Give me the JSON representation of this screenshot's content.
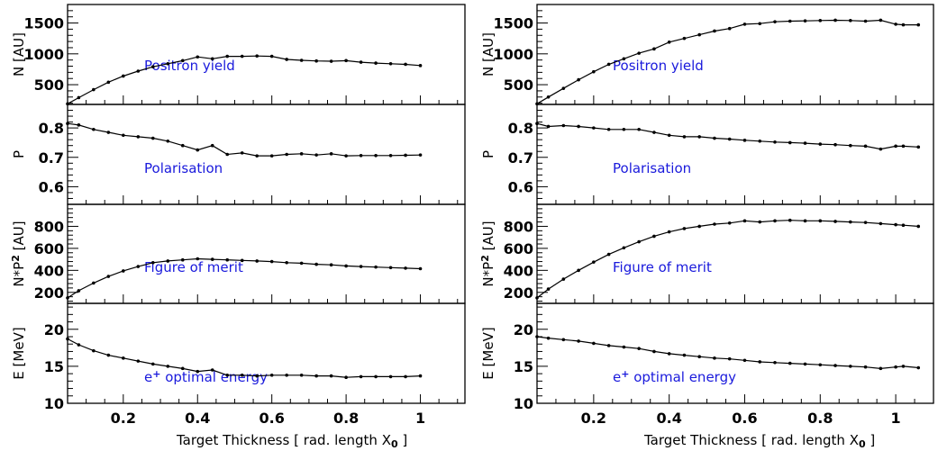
{
  "chart_data": [
    {
      "type": "line",
      "column": "left",
      "xlabel_parts": [
        "Target Thickness [ rad. length X",
        "0",
        " ]"
      ],
      "xlim": [
        0.05,
        1.12
      ],
      "xticks": [
        0.2,
        0.4,
        0.6,
        0.8,
        1
      ],
      "xtick_labels": [
        "0.2",
        "0.4",
        "0.6",
        "0.8",
        "1"
      ],
      "panels": [
        {
          "ylabel_parts": [
            "N [AU]"
          ],
          "annotation_parts": [
            "Positron yield"
          ],
          "ylim": [
            180,
            1800
          ],
          "yticks": [
            500,
            1000,
            1500
          ],
          "ytick_labels": [
            "500",
            "1000",
            "1500"
          ],
          "x": [
            0.05,
            0.08,
            0.12,
            0.16,
            0.2,
            0.24,
            0.28,
            0.32,
            0.36,
            0.4,
            0.44,
            0.48,
            0.52,
            0.56,
            0.6,
            0.64,
            0.68,
            0.72,
            0.76,
            0.8,
            0.84,
            0.88,
            0.92,
            0.96,
            1.0
          ],
          "y": [
            190,
            290,
            420,
            540,
            640,
            720,
            790,
            840,
            890,
            950,
            920,
            960,
            960,
            965,
            960,
            910,
            895,
            885,
            880,
            890,
            865,
            850,
            840,
            830,
            810
          ]
        },
        {
          "ylabel_parts": [
            "P"
          ],
          "annotation_parts": [
            "Polarisation"
          ],
          "ylim": [
            0.54,
            0.88
          ],
          "yticks": [
            0.6,
            0.7,
            0.8
          ],
          "ytick_labels": [
            "0.6",
            "0.7",
            "0.8"
          ],
          "x": [
            0.05,
            0.08,
            0.12,
            0.16,
            0.2,
            0.24,
            0.28,
            0.32,
            0.36,
            0.4,
            0.44,
            0.48,
            0.52,
            0.56,
            0.6,
            0.64,
            0.68,
            0.72,
            0.76,
            0.8,
            0.84,
            0.88,
            0.92,
            0.96,
            1.0
          ],
          "y": [
            0.815,
            0.81,
            0.795,
            0.785,
            0.775,
            0.77,
            0.765,
            0.755,
            0.74,
            0.725,
            0.74,
            0.71,
            0.715,
            0.705,
            0.705,
            0.71,
            0.712,
            0.708,
            0.712,
            0.705,
            0.706,
            0.706,
            0.706,
            0.707,
            0.708
          ]
        },
        {
          "ylabel_parts": [
            "N*P",
            "2",
            " [AU]"
          ],
          "annotation_parts": [
            "Figure of merit"
          ],
          "ylim": [
            100,
            1000
          ],
          "yticks": [
            200,
            400,
            600,
            800
          ],
          "ytick_labels": [
            "200",
            "400",
            "600",
            "800"
          ],
          "x": [
            0.05,
            0.08,
            0.12,
            0.16,
            0.2,
            0.24,
            0.28,
            0.32,
            0.36,
            0.4,
            0.44,
            0.48,
            0.52,
            0.56,
            0.6,
            0.64,
            0.68,
            0.72,
            0.76,
            0.8,
            0.84,
            0.88,
            0.92,
            0.96,
            1.0
          ],
          "y": [
            150,
            215,
            285,
            345,
            395,
            435,
            470,
            485,
            495,
            505,
            500,
            495,
            490,
            485,
            480,
            470,
            465,
            455,
            450,
            440,
            435,
            430,
            425,
            420,
            415
          ]
        },
        {
          "ylabel_parts": [
            "E [MeV]"
          ],
          "annotation_parts": [
            "e",
            "+",
            " optimal energy"
          ],
          "ylim": [
            10,
            23.5
          ],
          "yticks": [
            10,
            15,
            20
          ],
          "ytick_labels": [
            "10",
            "15",
            "20"
          ],
          "x": [
            0.05,
            0.08,
            0.12,
            0.16,
            0.2,
            0.24,
            0.28,
            0.32,
            0.36,
            0.4,
            0.44,
            0.48,
            0.52,
            0.56,
            0.6,
            0.64,
            0.68,
            0.72,
            0.76,
            0.8,
            0.84,
            0.88,
            0.92,
            0.96,
            1.0
          ],
          "y": [
            18.7,
            17.9,
            17.1,
            16.5,
            16.1,
            15.7,
            15.3,
            15.0,
            14.7,
            14.3,
            14.5,
            13.8,
            13.8,
            13.7,
            13.8,
            13.8,
            13.8,
            13.7,
            13.7,
            13.5,
            13.6,
            13.6,
            13.6,
            13.6,
            13.7
          ]
        }
      ]
    },
    {
      "type": "line",
      "column": "right",
      "xlabel_parts": [
        "Target Thickness [ rad. length X",
        "0",
        " ]"
      ],
      "xlim": [
        0.05,
        1.1
      ],
      "xticks": [
        0.2,
        0.4,
        0.6,
        0.8,
        1
      ],
      "xtick_labels": [
        "0.2",
        "0.4",
        "0.6",
        "0.8",
        "1"
      ],
      "panels": [
        {
          "ylabel_parts": [
            "N [AU]"
          ],
          "annotation_parts": [
            "Positron yield"
          ],
          "ylim": [
            180,
            1800
          ],
          "yticks": [
            500,
            1000,
            1500
          ],
          "ytick_labels": [
            "500",
            "1000",
            "1500"
          ],
          "x": [
            0.05,
            0.08,
            0.12,
            0.16,
            0.2,
            0.24,
            0.28,
            0.32,
            0.36,
            0.4,
            0.44,
            0.48,
            0.52,
            0.56,
            0.6,
            0.64,
            0.68,
            0.72,
            0.76,
            0.8,
            0.84,
            0.88,
            0.92,
            0.96,
            1.0,
            1.02,
            1.06
          ],
          "y": [
            190,
            300,
            440,
            580,
            710,
            830,
            920,
            1010,
            1080,
            1190,
            1250,
            1310,
            1370,
            1410,
            1480,
            1490,
            1520,
            1530,
            1535,
            1540,
            1545,
            1540,
            1530,
            1545,
            1480,
            1470,
            1470
          ]
        },
        {
          "ylabel_parts": [
            "P"
          ],
          "annotation_parts": [
            "Polarisation"
          ],
          "ylim": [
            0.54,
            0.88
          ],
          "yticks": [
            0.6,
            0.7,
            0.8
          ],
          "ytick_labels": [
            "0.6",
            "0.7",
            "0.8"
          ],
          "x": [
            0.05,
            0.08,
            0.12,
            0.16,
            0.2,
            0.24,
            0.28,
            0.32,
            0.36,
            0.4,
            0.44,
            0.48,
            0.52,
            0.56,
            0.6,
            0.64,
            0.68,
            0.72,
            0.76,
            0.8,
            0.84,
            0.88,
            0.92,
            0.96,
            1.0,
            1.02,
            1.06
          ],
          "y": [
            0.815,
            0.805,
            0.808,
            0.805,
            0.8,
            0.795,
            0.795,
            0.795,
            0.785,
            0.775,
            0.77,
            0.77,
            0.765,
            0.762,
            0.758,
            0.755,
            0.752,
            0.75,
            0.748,
            0.745,
            0.743,
            0.74,
            0.738,
            0.728,
            0.738,
            0.738,
            0.735
          ]
        },
        {
          "ylabel_parts": [
            "N*P",
            "2",
            " [AU]"
          ],
          "annotation_parts": [
            "Figure of merit"
          ],
          "ylim": [
            100,
            1000
          ],
          "yticks": [
            200,
            400,
            600,
            800
          ],
          "ytick_labels": [
            "200",
            "400",
            "600",
            "800"
          ],
          "x": [
            0.05,
            0.08,
            0.12,
            0.16,
            0.2,
            0.24,
            0.28,
            0.32,
            0.36,
            0.4,
            0.44,
            0.48,
            0.52,
            0.56,
            0.6,
            0.64,
            0.68,
            0.72,
            0.76,
            0.8,
            0.84,
            0.88,
            0.92,
            0.96,
            1.0,
            1.02,
            1.06
          ],
          "y": [
            150,
            230,
            320,
            400,
            475,
            545,
            605,
            660,
            710,
            750,
            780,
            800,
            820,
            830,
            850,
            840,
            850,
            855,
            850,
            850,
            845,
            840,
            835,
            825,
            815,
            810,
            800
          ]
        },
        {
          "ylabel_parts": [
            "E [MeV]"
          ],
          "annotation_parts": [
            "e",
            "+",
            " optimal energy"
          ],
          "ylim": [
            10,
            23.5
          ],
          "yticks": [
            10,
            15,
            20
          ],
          "ytick_labels": [
            "10",
            "15",
            "20"
          ],
          "x": [
            0.05,
            0.08,
            0.12,
            0.16,
            0.2,
            0.24,
            0.28,
            0.32,
            0.36,
            0.4,
            0.44,
            0.48,
            0.52,
            0.56,
            0.6,
            0.64,
            0.68,
            0.72,
            0.76,
            0.8,
            0.84,
            0.88,
            0.92,
            0.96,
            1.0,
            1.02,
            1.06
          ],
          "y": [
            19.0,
            18.8,
            18.6,
            18.4,
            18.1,
            17.8,
            17.6,
            17.4,
            17.0,
            16.7,
            16.5,
            16.3,
            16.1,
            16.0,
            15.8,
            15.6,
            15.5,
            15.4,
            15.3,
            15.2,
            15.1,
            15.0,
            14.9,
            14.7,
            14.9,
            15.0,
            14.8
          ]
        }
      ]
    }
  ]
}
